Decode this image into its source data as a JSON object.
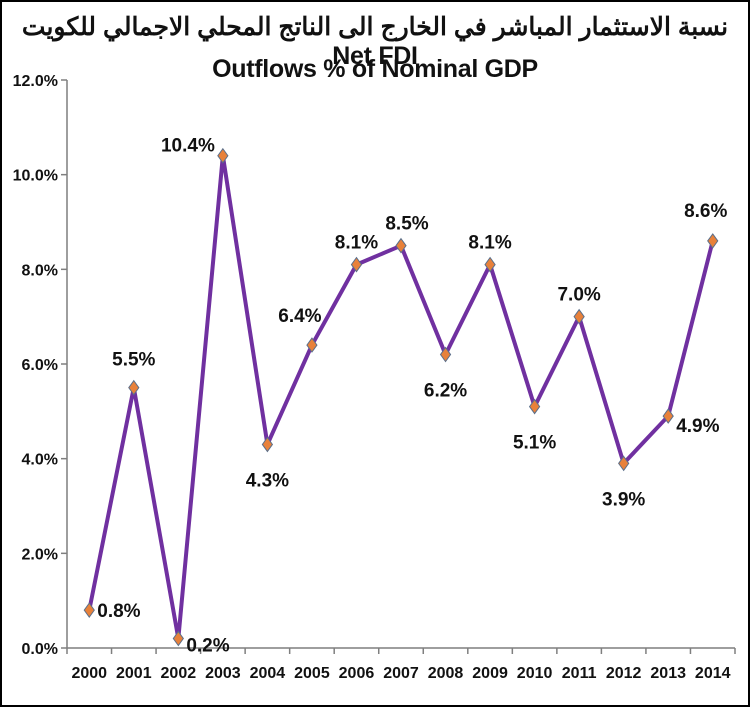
{
  "chart_data": {
    "type": "line",
    "title_line1": "نسبة الاستثمار المباشر في الخارج الى الناتج المحلي الاجمالي للكويت  Net FDI",
    "title_line2": "Outflows % of Nominal GDP",
    "categories": [
      "2000",
      "2001",
      "2002",
      "2003",
      "2004",
      "2005",
      "2006",
      "2007",
      "2008",
      "2009",
      "2010",
      "2011",
      "2012",
      "2013",
      "2014"
    ],
    "series": [
      {
        "values": [
          0.8,
          5.5,
          0.2,
          10.4,
          4.3,
          6.4,
          8.1,
          8.5,
          6.2,
          8.1,
          5.1,
          7.0,
          3.9,
          4.9,
          8.6
        ],
        "labels": [
          "0.8%",
          "5.5%",
          "0.2%",
          "10.4%",
          "4.3%",
          "6.4%",
          "8.1%",
          "8.5%",
          "6.2%",
          "8.1%",
          "5.1%",
          "7.0%",
          "3.9%",
          "4.9%",
          "8.6%"
        ],
        "line_color": "#7030a0",
        "marker_color": "#e8813a"
      }
    ],
    "ylim": [
      0,
      12
    ],
    "yticks": [
      "0.0%",
      "2.0%",
      "4.0%",
      "6.0%",
      "8.0%",
      "10.0%",
      "12.0%"
    ],
    "grid": false,
    "legend": "none"
  }
}
